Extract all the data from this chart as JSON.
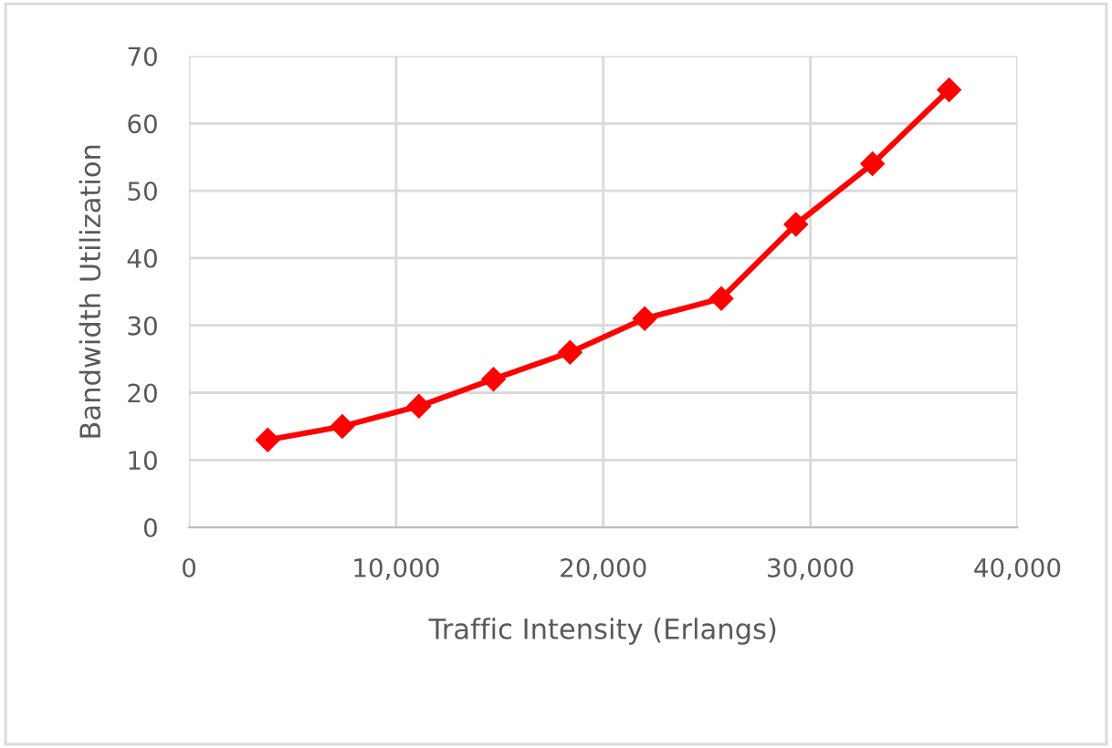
{
  "chart_data": {
    "type": "line",
    "xlabel": "Traffic Intensity (Erlangs)",
    "ylabel": "Bandwidth Utilization",
    "x": [
      3800,
      7400,
      11100,
      14700,
      18400,
      22000,
      25700,
      29300,
      33000,
      36700
    ],
    "series": [
      {
        "color": "#ff0000",
        "values": [
          13,
          15,
          18,
          22,
          26,
          31,
          34,
          45,
          54,
          65
        ]
      }
    ],
    "xlim": [
      0,
      40000
    ],
    "xticks": [
      0,
      {
        "value": 10000,
        "label": "10,000"
      },
      {
        "value": 20000,
        "label": "20,000"
      },
      {
        "value": 30000,
        "label": "30,000"
      },
      {
        "value": 40000,
        "label": "40,000"
      }
    ],
    "ylim": [
      0,
      70
    ],
    "yticks": [
      0,
      10,
      20,
      30,
      40,
      50,
      60,
      70
    ],
    "grid": true,
    "marker": "diamond",
    "line_style": "solid"
  }
}
